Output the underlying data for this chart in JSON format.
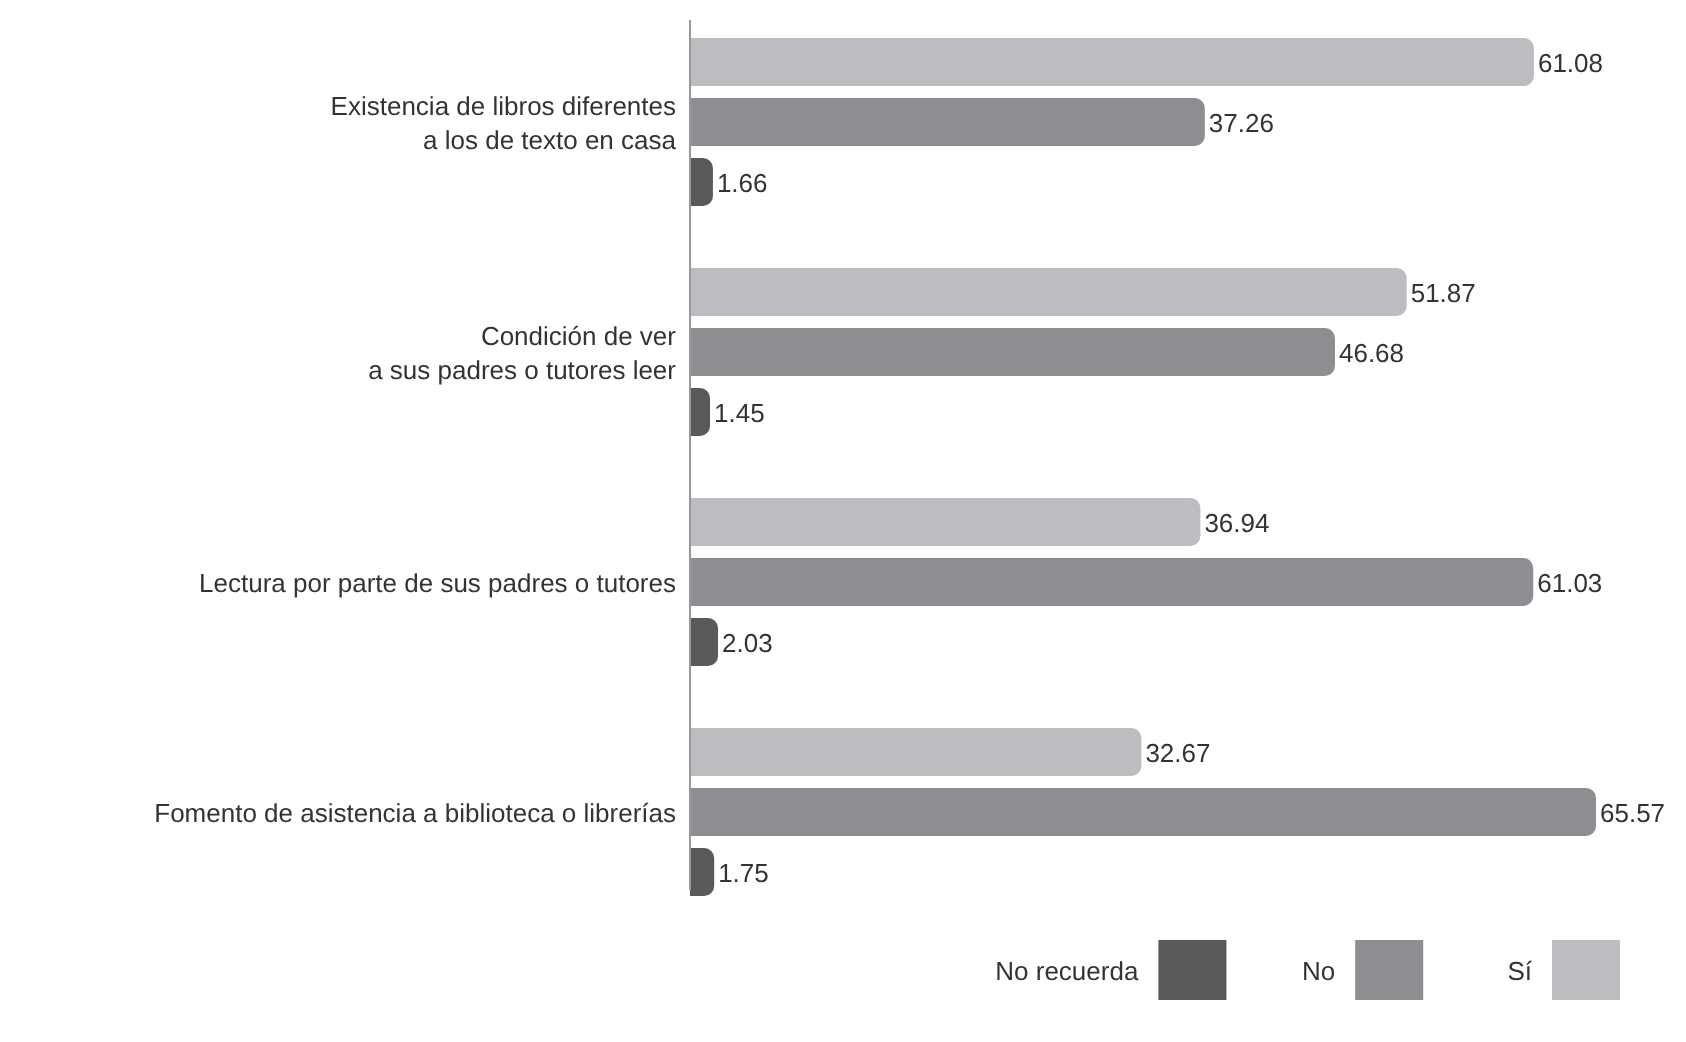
{
  "chart_data": {
    "type": "bar",
    "orientation": "horizontal",
    "categories": [
      "Existencia de libros diferentes\na los de texto en casa",
      "Condición de ver\na sus padres o tutores leer",
      "Lectura por parte de sus padres o tutores",
      "Fomento de asistencia a biblioteca o librerías"
    ],
    "series": [
      {
        "name": "Sí",
        "color": "#bcbdc0",
        "values": [
          61.08,
          51.87,
          36.94,
          32.67
        ]
      },
      {
        "name": "No",
        "color": "#8d8e91",
        "values": [
          37.26,
          46.68,
          61.03,
          65.57
        ]
      },
      {
        "name": "No recuerda",
        "color": "#58595b",
        "values": [
          1.66,
          1.45,
          2.03,
          1.75
        ]
      }
    ],
    "data_labels": true,
    "legend": "bottom right"
  }
}
